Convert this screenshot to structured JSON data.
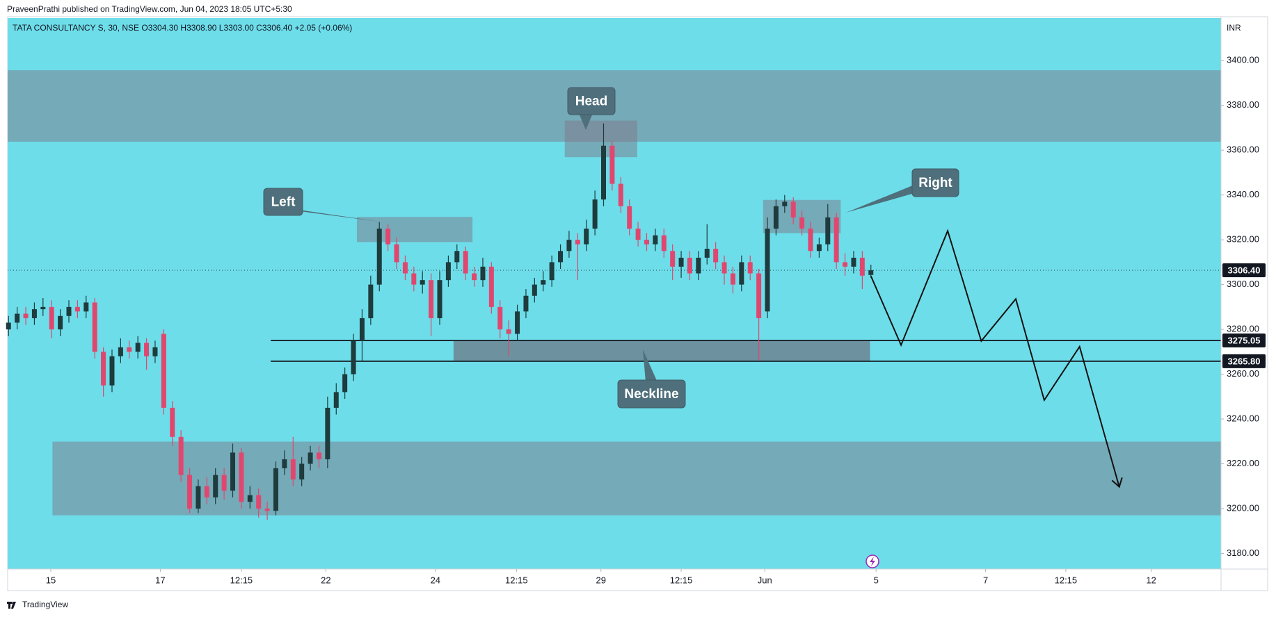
{
  "header": {
    "published": "PraveenPrathi published on TradingView.com, Jun 04, 2023 18:05 UTC+5:30"
  },
  "footer": {
    "brand": "TradingView"
  },
  "chart_data": {
    "type": "candlestick",
    "symbol_line": "TATA CONSULTANCY S, 30, NSE  O3304.30  H3308.90  L3303.00  C3306.40  +2.05 (+0.06%)",
    "currency": "INR",
    "up_color": "#1e3b3d",
    "down_color": "#e0476f",
    "background": "#6ddde9",
    "grid": false,
    "xlim": [
      -0.1,
      140.6
    ],
    "ylim": [
      3173,
      3419
    ],
    "xticks": [
      {
        "value": 4.9,
        "label": "15"
      },
      {
        "value": 17.6,
        "label": "17"
      },
      {
        "value": 27,
        "label": "12:15"
      },
      {
        "value": 36.8,
        "label": "22"
      },
      {
        "value": 49.5,
        "label": "24"
      },
      {
        "value": 58.9,
        "label": "12:15"
      },
      {
        "value": 68.7,
        "label": "29"
      },
      {
        "value": 78,
        "label": "12:15"
      },
      {
        "value": 87.7,
        "label": "Jun"
      },
      {
        "value": 100.6,
        "label": "5"
      },
      {
        "value": 113.3,
        "label": "7"
      },
      {
        "value": 122.6,
        "label": "12:15"
      },
      {
        "value": 132.5,
        "label": "12"
      }
    ],
    "yticks": [
      {
        "value": 3180,
        "label": "3180.00"
      },
      {
        "value": 3200,
        "label": "3200.00"
      },
      {
        "value": 3220,
        "label": "3220.00"
      },
      {
        "value": 3240,
        "label": "3240.00"
      },
      {
        "value": 3260,
        "label": "3260.00"
      },
      {
        "value": 3280,
        "label": "3280.00"
      },
      {
        "value": 3300,
        "label": "3300.00"
      },
      {
        "value": 3320,
        "label": "3320.00"
      },
      {
        "value": 3340,
        "label": "3340.00"
      },
      {
        "value": 3360,
        "label": "3360.00"
      },
      {
        "value": 3380,
        "label": "3380.00"
      },
      {
        "value": 3400,
        "label": "3400.00"
      }
    ],
    "series": [
      {
        "open": [
          3280,
          3283,
          3287,
          3285,
          3289,
          3290,
          3280,
          3286,
          3290,
          3288,
          3292,
          3270,
          3255,
          3268,
          3272,
          3270,
          3274,
          3268,
          3278,
          3245,
          3232,
          3215,
          3200,
          3210,
          3205,
          3215,
          3208,
          3225,
          3203,
          3206,
          3200,
          3199,
          3218,
          3222,
          3213,
          3220,
          3225,
          3222,
          3245,
          3252,
          3260,
          3275,
          3285,
          3300,
          3325,
          3318,
          3310,
          3305,
          3300,
          3302,
          3285,
          3302,
          3310,
          3315,
          3305,
          3302,
          3308,
          3290,
          3280,
          3278,
          3288,
          3295,
          3300,
          3302,
          3310,
          3315,
          3320,
          3318,
          3325,
          3338,
          3362,
          3345,
          3335,
          3325,
          3320,
          3318,
          3322,
          3315,
          3308,
          3312,
          3305,
          3312,
          3316,
          3310,
          3305,
          3300,
          3310,
          3305,
          3288,
          3325,
          3335,
          3337,
          3330,
          3325,
          3315,
          3318,
          3330,
          3310,
          3308,
          3312,
          3304.3
        ],
        "high": [
          3286,
          3290,
          3290,
          3292,
          3294,
          3293,
          3289,
          3293,
          3293,
          3295,
          3294,
          3272,
          3271,
          3276,
          3275,
          3277,
          3276,
          3275,
          3280,
          3248,
          3235,
          3218,
          3213,
          3214,
          3218,
          3218,
          3229,
          3227,
          3210,
          3209,
          3203,
          3221,
          3226,
          3232,
          3223,
          3228,
          3228,
          3250,
          3256,
          3263,
          3278,
          3289,
          3304,
          3328,
          3327,
          3321,
          3313,
          3308,
          3306,
          3305,
          3306,
          3313,
          3318,
          3317,
          3308,
          3312,
          3310,
          3293,
          3284,
          3291,
          3298,
          3303,
          3306,
          3313,
          3318,
          3324,
          3323,
          3329,
          3342,
          3372,
          3364,
          3348,
          3338,
          3328,
          3323,
          3325,
          3325,
          3318,
          3315,
          3315,
          3315,
          3327,
          3319,
          3313,
          3308,
          3313,
          3313,
          3307,
          3330,
          3338,
          3340,
          3339,
          3333,
          3328,
          3321,
          3336,
          3332,
          3314,
          3315,
          3315,
          3308.9
        ],
        "low": [
          3277,
          3280,
          3282,
          3282,
          3286,
          3276,
          3277,
          3283,
          3285,
          3285,
          3267,
          3250,
          3252,
          3265,
          3267,
          3267,
          3262,
          3265,
          3242,
          3228,
          3212,
          3198,
          3198,
          3202,
          3202,
          3204,
          3205,
          3200,
          3200,
          3196,
          3195,
          3197,
          3215,
          3210,
          3210,
          3217,
          3218,
          3218,
          3242,
          3249,
          3257,
          3266,
          3282,
          3297,
          3315,
          3307,
          3302,
          3297,
          3296,
          3277,
          3282,
          3299,
          3307,
          3302,
          3299,
          3299,
          3287,
          3276,
          3268,
          3275,
          3285,
          3292,
          3297,
          3299,
          3307,
          3312,
          3302,
          3315,
          3322,
          3335,
          3342,
          3332,
          3322,
          3317,
          3315,
          3315,
          3312,
          3302,
          3303,
          3302,
          3302,
          3309,
          3307,
          3300,
          3296,
          3297,
          3302,
          3266,
          3285,
          3322,
          3332,
          3327,
          3322,
          3312,
          3312,
          3315,
          3307,
          3304,
          3305,
          3298,
          3303
        ],
        "close": [
          3283,
          3287,
          3285,
          3289,
          3290,
          3280,
          3286,
          3290,
          3288,
          3292,
          3270,
          3255,
          3268,
          3272,
          3270,
          3274,
          3268,
          3272,
          3245,
          3232,
          3215,
          3200,
          3210,
          3205,
          3215,
          3208,
          3225,
          3203,
          3206,
          3200,
          3199,
          3218,
          3222,
          3213,
          3220,
          3225,
          3222,
          3245,
          3252,
          3260,
          3275,
          3285,
          3300,
          3325,
          3318,
          3310,
          3305,
          3300,
          3302,
          3285,
          3302,
          3310,
          3315,
          3305,
          3302,
          3308,
          3290,
          3280,
          3278,
          3288,
          3295,
          3300,
          3302,
          3310,
          3315,
          3320,
          3318,
          3325,
          3338,
          3362,
          3345,
          3335,
          3325,
          3320,
          3318,
          3322,
          3315,
          3308,
          3312,
          3305,
          3312,
          3316,
          3310,
          3305,
          3300,
          3310,
          3305,
          3285,
          3325,
          3335,
          3337,
          3330,
          3325,
          3315,
          3318,
          3330,
          3310,
          3308,
          3312,
          3304,
          3306.4
        ]
      }
    ],
    "zones": [
      {
        "start": -0.1,
        "end": 140.6,
        "from": 3363.8,
        "to": 3395.7,
        "color": "rgba(125,120,135,0.5)"
      },
      {
        "start": 5.1,
        "end": 140.6,
        "from": 3197,
        "to": 3229.9,
        "color": "rgba(125,120,135,0.5)"
      },
      {
        "start": 64.5,
        "end": 72.9,
        "from": 3356.9,
        "to": 3373.2,
        "color": "rgba(125,120,135,0.5)"
      },
      {
        "start": 40.4,
        "end": 53.8,
        "from": 3319,
        "to": 3330.2,
        "color": "rgba(125,120,135,0.5)"
      },
      {
        "start": 87.5,
        "end": 96.5,
        "from": 3323,
        "to": 3337.8,
        "color": "rgba(125,120,135,0.5)"
      },
      {
        "start": 51.6,
        "end": 99.9,
        "from": 3266.1,
        "to": 3275.2,
        "color": "rgba(110,95,110,0.6)"
      }
    ],
    "price_lines": [
      {
        "value": 3306.4,
        "label": "3306.40",
        "start": -0.1,
        "style": "dotted"
      },
      {
        "value": 3275.05,
        "label": "3275.05",
        "start": 30.4,
        "style": "solid"
      },
      {
        "value": 3265.8,
        "label": "3265.80",
        "start": 30.4,
        "style": "solid"
      }
    ],
    "projection": {
      "x": [
        100,
        103.5,
        108.9,
        112.8,
        116.8,
        120.1,
        124.2,
        128.8
      ],
      "y": [
        3303.8,
        3273,
        3324,
        3274.8,
        3293.6,
        3248.4,
        3272.3,
        3209.7
      ]
    },
    "annotations": [
      {
        "text": "Left"
      },
      {
        "text": "Head"
      },
      {
        "text": "Right"
      },
      {
        "text": "Neckline"
      }
    ]
  }
}
